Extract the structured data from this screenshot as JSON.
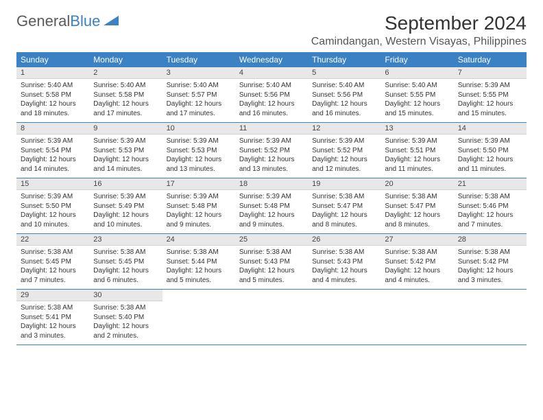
{
  "brand": {
    "name1": "General",
    "name2": "Blue"
  },
  "title": "September 2024",
  "location": "Camindangan, Western Visayas, Philippines",
  "colors": {
    "header_bg": "#3b82c4",
    "daynum_bg": "#e8e8e8",
    "rule": "#3b82c4"
  },
  "weekdays": [
    "Sunday",
    "Monday",
    "Tuesday",
    "Wednesday",
    "Thursday",
    "Friday",
    "Saturday"
  ],
  "days": [
    {
      "n": "1",
      "sr": "Sunrise: 5:40 AM",
      "ss": "Sunset: 5:58 PM",
      "d1": "Daylight: 12 hours",
      "d2": "and 18 minutes."
    },
    {
      "n": "2",
      "sr": "Sunrise: 5:40 AM",
      "ss": "Sunset: 5:58 PM",
      "d1": "Daylight: 12 hours",
      "d2": "and 17 minutes."
    },
    {
      "n": "3",
      "sr": "Sunrise: 5:40 AM",
      "ss": "Sunset: 5:57 PM",
      "d1": "Daylight: 12 hours",
      "d2": "and 17 minutes."
    },
    {
      "n": "4",
      "sr": "Sunrise: 5:40 AM",
      "ss": "Sunset: 5:56 PM",
      "d1": "Daylight: 12 hours",
      "d2": "and 16 minutes."
    },
    {
      "n": "5",
      "sr": "Sunrise: 5:40 AM",
      "ss": "Sunset: 5:56 PM",
      "d1": "Daylight: 12 hours",
      "d2": "and 16 minutes."
    },
    {
      "n": "6",
      "sr": "Sunrise: 5:40 AM",
      "ss": "Sunset: 5:55 PM",
      "d1": "Daylight: 12 hours",
      "d2": "and 15 minutes."
    },
    {
      "n": "7",
      "sr": "Sunrise: 5:39 AM",
      "ss": "Sunset: 5:55 PM",
      "d1": "Daylight: 12 hours",
      "d2": "and 15 minutes."
    },
    {
      "n": "8",
      "sr": "Sunrise: 5:39 AM",
      "ss": "Sunset: 5:54 PM",
      "d1": "Daylight: 12 hours",
      "d2": "and 14 minutes."
    },
    {
      "n": "9",
      "sr": "Sunrise: 5:39 AM",
      "ss": "Sunset: 5:53 PM",
      "d1": "Daylight: 12 hours",
      "d2": "and 14 minutes."
    },
    {
      "n": "10",
      "sr": "Sunrise: 5:39 AM",
      "ss": "Sunset: 5:53 PM",
      "d1": "Daylight: 12 hours",
      "d2": "and 13 minutes."
    },
    {
      "n": "11",
      "sr": "Sunrise: 5:39 AM",
      "ss": "Sunset: 5:52 PM",
      "d1": "Daylight: 12 hours",
      "d2": "and 13 minutes."
    },
    {
      "n": "12",
      "sr": "Sunrise: 5:39 AM",
      "ss": "Sunset: 5:52 PM",
      "d1": "Daylight: 12 hours",
      "d2": "and 12 minutes."
    },
    {
      "n": "13",
      "sr": "Sunrise: 5:39 AM",
      "ss": "Sunset: 5:51 PM",
      "d1": "Daylight: 12 hours",
      "d2": "and 11 minutes."
    },
    {
      "n": "14",
      "sr": "Sunrise: 5:39 AM",
      "ss": "Sunset: 5:50 PM",
      "d1": "Daylight: 12 hours",
      "d2": "and 11 minutes."
    },
    {
      "n": "15",
      "sr": "Sunrise: 5:39 AM",
      "ss": "Sunset: 5:50 PM",
      "d1": "Daylight: 12 hours",
      "d2": "and 10 minutes."
    },
    {
      "n": "16",
      "sr": "Sunrise: 5:39 AM",
      "ss": "Sunset: 5:49 PM",
      "d1": "Daylight: 12 hours",
      "d2": "and 10 minutes."
    },
    {
      "n": "17",
      "sr": "Sunrise: 5:39 AM",
      "ss": "Sunset: 5:48 PM",
      "d1": "Daylight: 12 hours",
      "d2": "and 9 minutes."
    },
    {
      "n": "18",
      "sr": "Sunrise: 5:39 AM",
      "ss": "Sunset: 5:48 PM",
      "d1": "Daylight: 12 hours",
      "d2": "and 9 minutes."
    },
    {
      "n": "19",
      "sr": "Sunrise: 5:38 AM",
      "ss": "Sunset: 5:47 PM",
      "d1": "Daylight: 12 hours",
      "d2": "and 8 minutes."
    },
    {
      "n": "20",
      "sr": "Sunrise: 5:38 AM",
      "ss": "Sunset: 5:47 PM",
      "d1": "Daylight: 12 hours",
      "d2": "and 8 minutes."
    },
    {
      "n": "21",
      "sr": "Sunrise: 5:38 AM",
      "ss": "Sunset: 5:46 PM",
      "d1": "Daylight: 12 hours",
      "d2": "and 7 minutes."
    },
    {
      "n": "22",
      "sr": "Sunrise: 5:38 AM",
      "ss": "Sunset: 5:45 PM",
      "d1": "Daylight: 12 hours",
      "d2": "and 7 minutes."
    },
    {
      "n": "23",
      "sr": "Sunrise: 5:38 AM",
      "ss": "Sunset: 5:45 PM",
      "d1": "Daylight: 12 hours",
      "d2": "and 6 minutes."
    },
    {
      "n": "24",
      "sr": "Sunrise: 5:38 AM",
      "ss": "Sunset: 5:44 PM",
      "d1": "Daylight: 12 hours",
      "d2": "and 5 minutes."
    },
    {
      "n": "25",
      "sr": "Sunrise: 5:38 AM",
      "ss": "Sunset: 5:43 PM",
      "d1": "Daylight: 12 hours",
      "d2": "and 5 minutes."
    },
    {
      "n": "26",
      "sr": "Sunrise: 5:38 AM",
      "ss": "Sunset: 5:43 PM",
      "d1": "Daylight: 12 hours",
      "d2": "and 4 minutes."
    },
    {
      "n": "27",
      "sr": "Sunrise: 5:38 AM",
      "ss": "Sunset: 5:42 PM",
      "d1": "Daylight: 12 hours",
      "d2": "and 4 minutes."
    },
    {
      "n": "28",
      "sr": "Sunrise: 5:38 AM",
      "ss": "Sunset: 5:42 PM",
      "d1": "Daylight: 12 hours",
      "d2": "and 3 minutes."
    },
    {
      "n": "29",
      "sr": "Sunrise: 5:38 AM",
      "ss": "Sunset: 5:41 PM",
      "d1": "Daylight: 12 hours",
      "d2": "and 3 minutes."
    },
    {
      "n": "30",
      "sr": "Sunrise: 5:38 AM",
      "ss": "Sunset: 5:40 PM",
      "d1": "Daylight: 12 hours",
      "d2": "and 2 minutes."
    }
  ]
}
